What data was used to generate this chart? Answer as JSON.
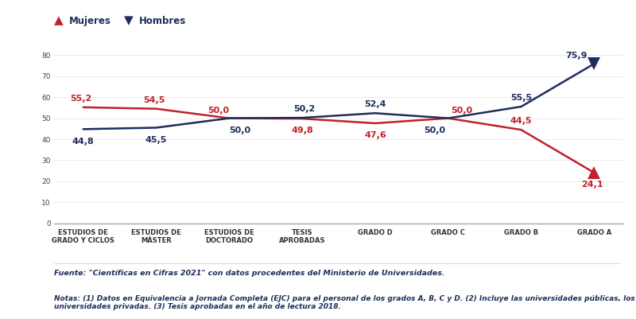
{
  "categories": [
    "ESTUDIOS DE\nGRADO Y CICLOS",
    "ESTUDIOS DE\nMÁSTER",
    "ESTUDIOS DE\nDOCTORADO",
    "TESIS\nAPROBADAS",
    "GRADO D",
    "GRADO C",
    "GRADO B",
    "GRADO A"
  ],
  "mujeres": [
    55.2,
    54.5,
    50.0,
    49.8,
    47.6,
    50.0,
    44.5,
    24.1
  ],
  "hombres": [
    44.8,
    45.5,
    50.0,
    50.2,
    52.4,
    50.0,
    55.5,
    75.9
  ],
  "mujeres_color": "#c0212a",
  "hombres_color": "#1e2d5a",
  "ylim": [
    0,
    85
  ],
  "yticks": [
    0,
    10,
    20,
    30,
    40,
    50,
    60,
    70,
    80
  ],
  "legend_mujeres": "Mujeres",
  "legend_hombres": "Hombres",
  "fuente": "Fuente: \"Científicas en Cifras 2021\" con datos procedentes del Ministerio de Universidades.",
  "notas": "Notas: (1) Datos en Equivalencia a Jornada Completa (EJC) para el personal de los grados A, B, C y D. (2) Incluye las universidades públicas, los centros adscritos y las\nuniversidades privadas. (3) Tesis aprobadas en el año de lectura 2018.",
  "background_color": "#ffffff",
  "label_fontsize": 8.0,
  "tick_fontsize": 6.5,
  "xtick_fontsize": 6.0,
  "line_width": 1.8
}
